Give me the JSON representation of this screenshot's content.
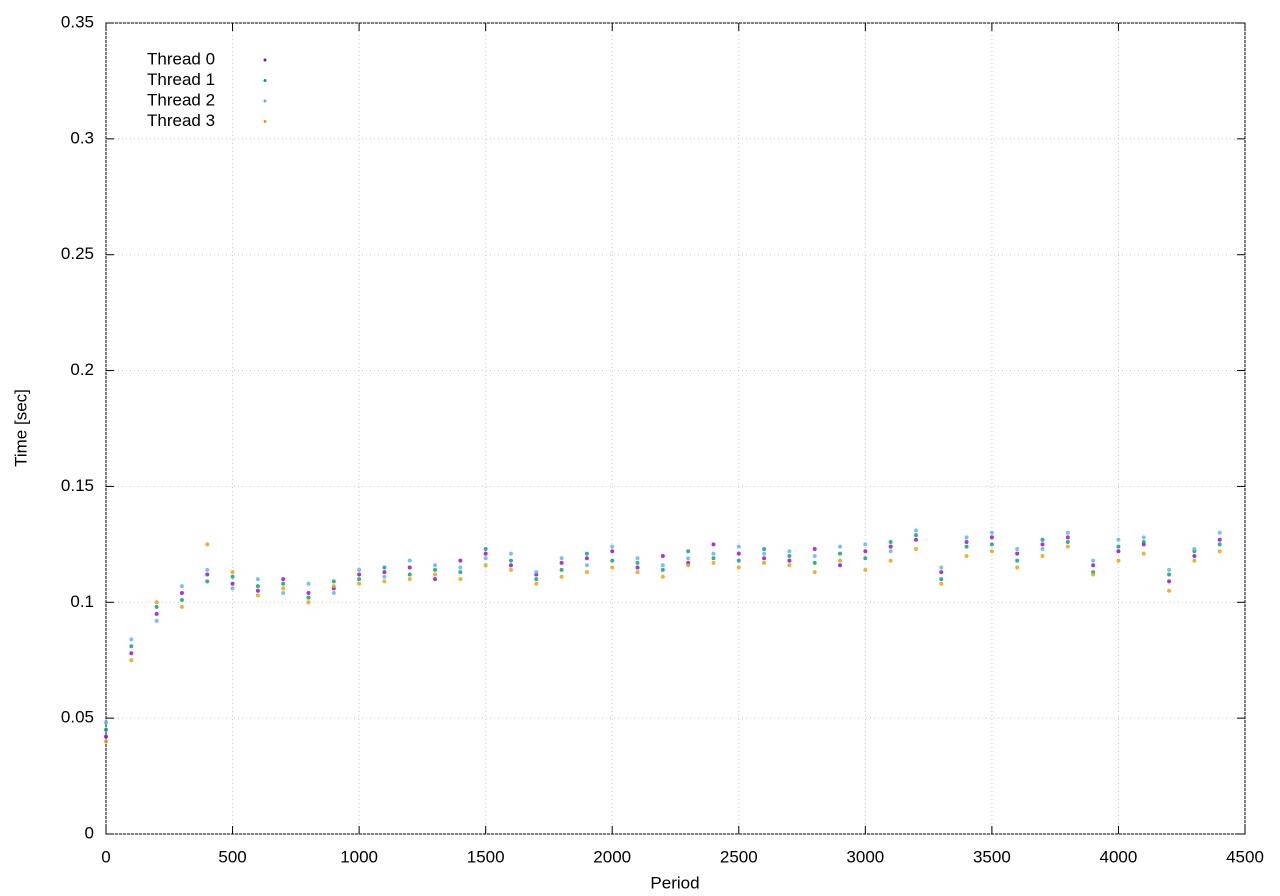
{
  "chart_data": {
    "type": "scatter",
    "xlabel": "Period",
    "ylabel": "Time [sec]",
    "x": [
      0,
      100,
      200,
      300,
      400,
      500,
      600,
      700,
      800,
      900,
      1000,
      1100,
      1200,
      1300,
      1400,
      1500,
      1600,
      1700,
      1800,
      1900,
      2000,
      2100,
      2200,
      2300,
      2400,
      2500,
      2600,
      2700,
      2800,
      2900,
      3000,
      3100,
      3200,
      3300,
      3400,
      3500,
      3600,
      3700,
      3800,
      3900,
      4000,
      4100,
      4200,
      4300,
      4400
    ],
    "series": [
      {
        "name": "Thread 0",
        "color": "#9400d3",
        "values": [
          0.042,
          0.078,
          0.095,
          0.104,
          0.112,
          0.108,
          0.105,
          0.11,
          0.104,
          0.106,
          0.112,
          0.113,
          0.115,
          0.11,
          0.118,
          0.121,
          0.116,
          0.112,
          0.117,
          0.119,
          0.122,
          0.115,
          0.12,
          0.117,
          0.125,
          0.121,
          0.119,
          0.118,
          0.123,
          0.116,
          0.122,
          0.124,
          0.127,
          0.113,
          0.126,
          0.128,
          0.121,
          0.125,
          0.128,
          0.116,
          0.122,
          0.125,
          0.109,
          0.12,
          0.127
        ]
      },
      {
        "name": "Thread 1",
        "color": "#009e73",
        "values": [
          0.045,
          0.081,
          0.098,
          0.101,
          0.109,
          0.111,
          0.107,
          0.108,
          0.102,
          0.109,
          0.11,
          0.115,
          0.112,
          0.114,
          0.113,
          0.123,
          0.118,
          0.11,
          0.114,
          0.121,
          0.118,
          0.117,
          0.114,
          0.122,
          0.119,
          0.118,
          0.123,
          0.12,
          0.117,
          0.121,
          0.119,
          0.126,
          0.129,
          0.11,
          0.124,
          0.125,
          0.118,
          0.127,
          0.126,
          0.113,
          0.124,
          0.126,
          0.112,
          0.122,
          0.125
        ]
      },
      {
        "name": "Thread 2",
        "color": "#56b4e9",
        "values": [
          0.048,
          0.084,
          0.092,
          0.107,
          0.114,
          0.106,
          0.11,
          0.104,
          0.108,
          0.104,
          0.114,
          0.111,
          0.118,
          0.116,
          0.115,
          0.119,
          0.121,
          0.113,
          0.119,
          0.116,
          0.124,
          0.119,
          0.116,
          0.119,
          0.121,
          0.124,
          0.121,
          0.122,
          0.12,
          0.124,
          0.125,
          0.122,
          0.131,
          0.115,
          0.128,
          0.13,
          0.123,
          0.123,
          0.13,
          0.118,
          0.127,
          0.128,
          0.114,
          0.123,
          0.13
        ]
      },
      {
        "name": "Thread 3",
        "color": "#e69f00",
        "values": [
          0.04,
          0.075,
          0.1,
          0.098,
          0.125,
          0.113,
          0.103,
          0.106,
          0.1,
          0.107,
          0.108,
          0.109,
          0.11,
          0.112,
          0.11,
          0.116,
          0.114,
          0.108,
          0.111,
          0.113,
          0.115,
          0.113,
          0.111,
          0.116,
          0.117,
          0.115,
          0.117,
          0.116,
          0.113,
          0.118,
          0.114,
          0.118,
          0.123,
          0.108,
          0.12,
          0.122,
          0.115,
          0.12,
          0.124,
          0.112,
          0.118,
          0.121,
          0.105,
          0.118,
          0.122
        ]
      }
    ],
    "xlim": [
      0,
      4500
    ],
    "xticks": [
      0,
      500,
      1000,
      1500,
      2000,
      2500,
      3000,
      3500,
      4000,
      4500
    ],
    "ylim": [
      0,
      0.35
    ],
    "yticks": [
      0,
      0.05,
      0.1,
      0.15,
      0.2,
      0.25,
      0.3,
      0.35
    ],
    "grid": true,
    "legend": "upper-left"
  }
}
